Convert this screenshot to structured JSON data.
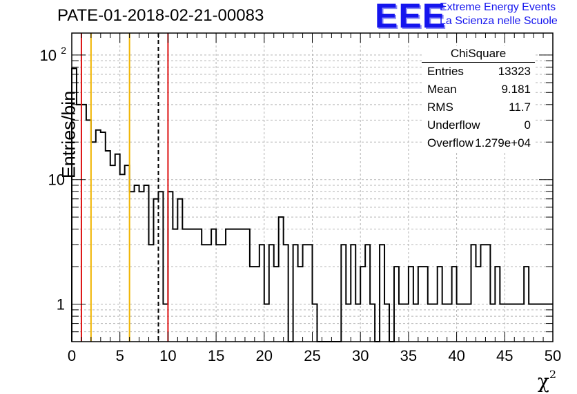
{
  "title": "PATE-01-2018-02-21-00083",
  "logo": {
    "mark": "EEE",
    "line1": "Extreme Energy Events",
    "line2": "La Scienza nelle Scuole"
  },
  "stats": {
    "title": "ChiSquare",
    "rows": [
      {
        "key": "Entries",
        "value": "13323"
      },
      {
        "key": "Mean",
        "value": "9.181"
      },
      {
        "key": "RMS",
        "value": "11.7"
      },
      {
        "key": "Underflow",
        "value": "0"
      },
      {
        "key": "Overflow",
        "value": "1.279e+04"
      }
    ]
  },
  "chart_data": {
    "type": "histogram",
    "xlabel": "χ",
    "xlabel_sup": "2",
    "ylabel": "Entries/bin",
    "xlim": [
      0,
      50
    ],
    "ylim": [
      0.5,
      150
    ],
    "yscale": "log",
    "grid": true,
    "bin_width": 0.5,
    "x_ticks": [
      "0",
      "5",
      "10",
      "15",
      "20",
      "25",
      "30",
      "35",
      "40",
      "45",
      "50"
    ],
    "y_ticks": [
      {
        "value": 1,
        "label": "1"
      },
      {
        "value": 10,
        "label": "10"
      },
      {
        "value": 100,
        "label": "10",
        "exp": "2"
      }
    ],
    "values": [
      78,
      40,
      40,
      30,
      20,
      25,
      24,
      17,
      13,
      16,
      11,
      13,
      8,
      9,
      8,
      9,
      3,
      7,
      8,
      1,
      8,
      4,
      7,
      4,
      4,
      4,
      4,
      3,
      3,
      4,
      3,
      3,
      4,
      4,
      4,
      4,
      4,
      2,
      2,
      3,
      1,
      3,
      2,
      5,
      3,
      0,
      3,
      2,
      3,
      3,
      1,
      0,
      0,
      0,
      0,
      0,
      3,
      1,
      3,
      1,
      2,
      3,
      1,
      0,
      3,
      1,
      0,
      2,
      1,
      1,
      2,
      1,
      2,
      2,
      1,
      1,
      2,
      1,
      1,
      2,
      1,
      1,
      1,
      3,
      2,
      3,
      3,
      1,
      2,
      1,
      1,
      1,
      1,
      1,
      2,
      1,
      1,
      1,
      1,
      1
    ],
    "vlines": [
      {
        "x": 1,
        "color": "#dd1111",
        "style": "solid"
      },
      {
        "x": 2,
        "color": "#f0b400",
        "style": "solid"
      },
      {
        "x": 6,
        "color": "#f0b400",
        "style": "solid"
      },
      {
        "x": 9,
        "color": "#000000",
        "style": "dashed"
      },
      {
        "x": 10,
        "color": "#dd1111",
        "style": "solid"
      }
    ]
  }
}
